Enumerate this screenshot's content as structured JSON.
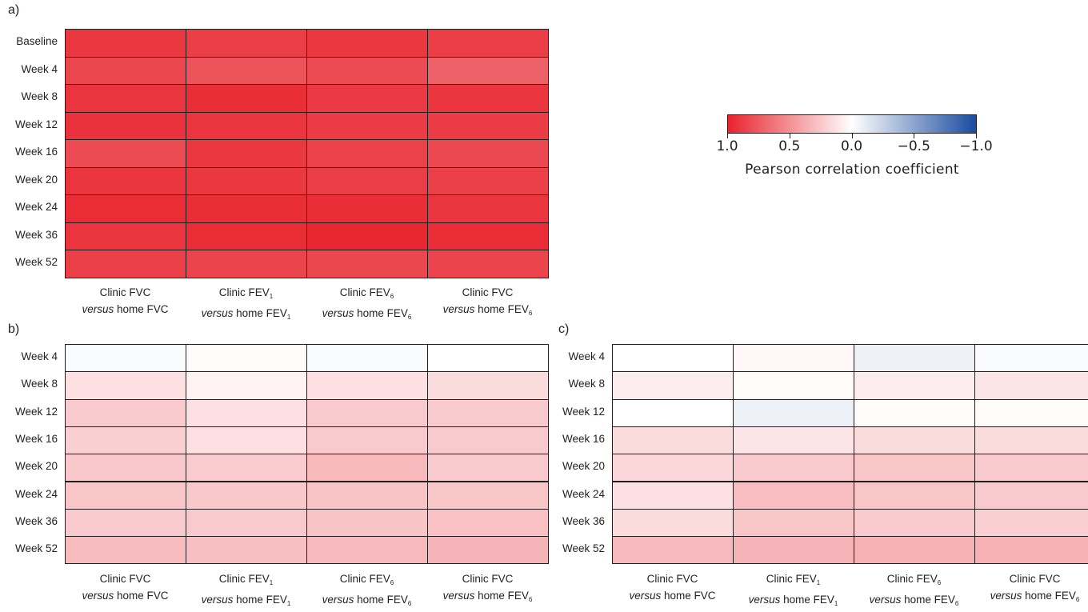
{
  "panels": [
    {
      "letter": "a)",
      "rows": [
        "Baseline",
        "Week 4",
        "Week 8",
        "Week 12",
        "Week 16",
        "Week 20",
        "Week 24",
        "Week 36",
        "Week 52"
      ]
    },
    {
      "letter": "b)",
      "rows": [
        "Week 4",
        "Week 8",
        "Week 12",
        "Week 16",
        "Week 20",
        "Week 24",
        "Week 36",
        "Week 52"
      ]
    },
    {
      "letter": "c)",
      "rows": [
        "Week 4",
        "Week 8",
        "Week 12",
        "Week 16",
        "Week 20",
        "Week 24",
        "Week 36",
        "Week 52"
      ]
    }
  ],
  "columns": [
    {
      "line1": "Clinic FVC",
      "line1_sub": "",
      "versus": "versus",
      "line2": " home FVC",
      "line2_sub": ""
    },
    {
      "line1": "Clinic FEV",
      "line1_sub": "1",
      "versus": "versus",
      "line2": " home FEV",
      "line2_sub": "1"
    },
    {
      "line1": "Clinic FEV",
      "line1_sub": "6",
      "versus": "versus",
      "line2": " home FEV",
      "line2_sub": "6"
    },
    {
      "line1": "Clinic FVC",
      "line1_sub": "",
      "versus": "versus",
      "line2": " home FEV",
      "line2_sub": "6"
    }
  ],
  "colorbar": {
    "title": "Pearson correlation coefficient",
    "ticks": [
      {
        "value": 1.0,
        "label": "1.0"
      },
      {
        "value": 0.5,
        "label": "0.5"
      },
      {
        "value": 0.0,
        "label": "0.0"
      },
      {
        "value": -0.5,
        "label": "−0.5"
      },
      {
        "value": -1.0,
        "label": "−1.0"
      }
    ],
    "colors": {
      "positive": "#e8232d",
      "neutral": "#ffffff",
      "negative": "#1a4ba0"
    }
  },
  "chart_data": [
    {
      "type": "heatmap",
      "title": "a)",
      "rows": [
        "Baseline",
        "Week 4",
        "Week 8",
        "Week 12",
        "Week 16",
        "Week 20",
        "Week 24",
        "Week 36",
        "Week 52"
      ],
      "columns": [
        "Clinic FVC versus home FVC",
        "Clinic FEV1 versus home FEV1",
        "Clinic FEV6 versus home FEV6",
        "Clinic FVC versus home FEV6"
      ],
      "values": [
        [
          0.91,
          0.88,
          0.91,
          0.88
        ],
        [
          0.84,
          0.78,
          0.82,
          0.72
        ],
        [
          0.92,
          0.95,
          0.9,
          0.92
        ],
        [
          0.93,
          0.92,
          0.89,
          0.89
        ],
        [
          0.82,
          0.91,
          0.86,
          0.83
        ],
        [
          0.92,
          0.91,
          0.88,
          0.87
        ],
        [
          0.96,
          0.95,
          0.95,
          0.92
        ],
        [
          0.92,
          0.96,
          0.98,
          0.96
        ],
        [
          0.87,
          0.85,
          0.84,
          0.85
        ]
      ],
      "zlim": [
        -1.0,
        1.0
      ]
    },
    {
      "type": "heatmap",
      "title": "b)",
      "rows": [
        "Week 4",
        "Week 8",
        "Week 12",
        "Week 16",
        "Week 20",
        "Week 24",
        "Week 36",
        "Week 52"
      ],
      "columns": [
        "Clinic FVC versus home FVC",
        "Clinic FEV1 versus home FEV1",
        "Clinic FEV6 versus home FEV6",
        "Clinic FVC versus home FEV6"
      ],
      "values": [
        [
          -0.02,
          0.02,
          -0.02,
          0.0
        ],
        [
          0.14,
          0.06,
          0.14,
          0.16
        ],
        [
          0.24,
          0.14,
          0.24,
          0.24
        ],
        [
          0.22,
          0.14,
          0.24,
          0.24
        ],
        [
          0.25,
          0.23,
          0.32,
          0.24
        ],
        [
          0.26,
          0.25,
          0.27,
          0.26
        ],
        [
          0.24,
          0.24,
          0.27,
          0.28
        ],
        [
          0.31,
          0.29,
          0.32,
          0.34
        ]
      ],
      "zlim": [
        -1.0,
        1.0
      ]
    },
    {
      "type": "heatmap",
      "title": "c)",
      "rows": [
        "Week 4",
        "Week 8",
        "Week 12",
        "Week 16",
        "Week 20",
        "Week 24",
        "Week 36",
        "Week 52"
      ],
      "columns": [
        "Clinic FVC versus home FVC",
        "Clinic FEV1 versus home FEV1",
        "Clinic FEV6 versus home FEV6",
        "Clinic FVC versus home FEV6"
      ],
      "values": [
        [
          0.0,
          0.04,
          -0.08,
          -0.02
        ],
        [
          0.08,
          0.02,
          0.08,
          0.12
        ],
        [
          0.0,
          -0.08,
          0.02,
          0.02
        ],
        [
          0.16,
          0.12,
          0.16,
          0.16
        ],
        [
          0.18,
          0.24,
          0.26,
          0.24
        ],
        [
          0.14,
          0.3,
          0.26,
          0.24
        ],
        [
          0.16,
          0.26,
          0.24,
          0.22
        ],
        [
          0.32,
          0.34,
          0.36,
          0.36
        ]
      ],
      "zlim": [
        -1.0,
        1.0
      ]
    }
  ]
}
